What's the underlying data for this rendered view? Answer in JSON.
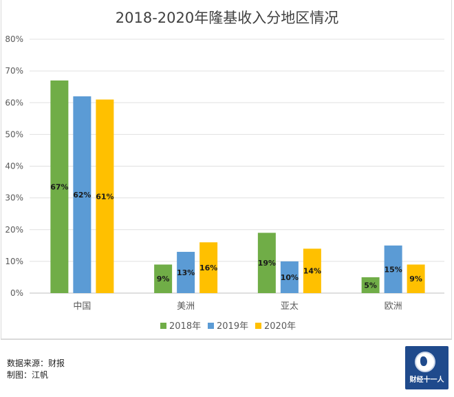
{
  "chart_data": {
    "type": "bar",
    "title": "2018-2020年隆基收入分地区情况",
    "categories": [
      "中国",
      "美洲",
      "亚太",
      "欧洲"
    ],
    "series": [
      {
        "name": "2018年",
        "color": "#70ad47",
        "values": [
          67,
          9,
          19,
          5
        ],
        "labels": [
          "67%",
          "9%",
          "19%",
          "5%"
        ]
      },
      {
        "name": "2019年",
        "color": "#5b9bd5",
        "values": [
          62,
          13,
          10,
          15
        ],
        "labels": [
          "62%",
          "13%",
          "10%",
          "15%"
        ]
      },
      {
        "name": "2020年",
        "color": "#ffc000",
        "values": [
          61,
          16,
          14,
          9
        ],
        "labels": [
          "61%",
          "16%",
          "14%",
          "9%"
        ]
      }
    ],
    "yticks": [
      "0%",
      "10%",
      "20%",
      "30%",
      "40%",
      "50%",
      "60%",
      "70%",
      "80%"
    ],
    "ylim": [
      0,
      80
    ],
    "xlabel": "",
    "ylabel": "",
    "grid": true,
    "legend": "bottom"
  },
  "footer": {
    "source": "数据来源：财报",
    "author": "制图：江帆"
  },
  "logo": {
    "text": "财经十一人"
  }
}
